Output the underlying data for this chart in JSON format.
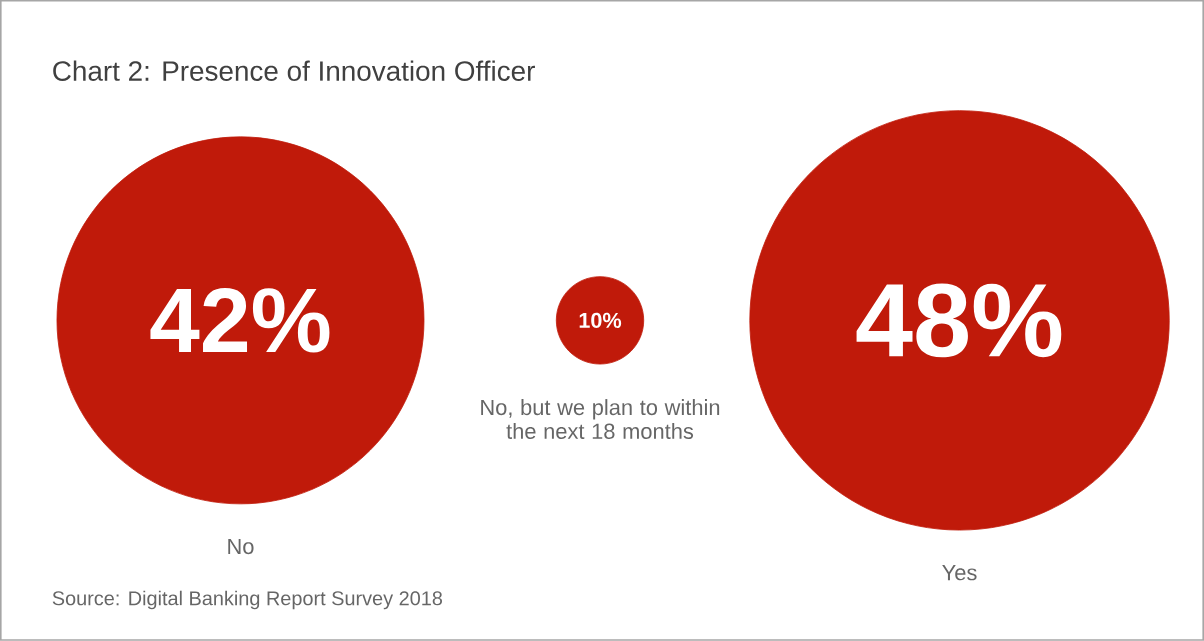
{
  "chart_data": {
    "type": "other",
    "title": "Chart  2: Presence of Innovation Officer",
    "categories": [
      "No",
      "No, but we plan to within the next 18 months",
      "Yes"
    ],
    "values": [
      42,
      10,
      48
    ],
    "value_labels": [
      "42%",
      "10%",
      "48%"
    ],
    "color": "#c01a0a",
    "annotations": [
      "Source: Digital Banking Report Survey 2018"
    ]
  }
}
